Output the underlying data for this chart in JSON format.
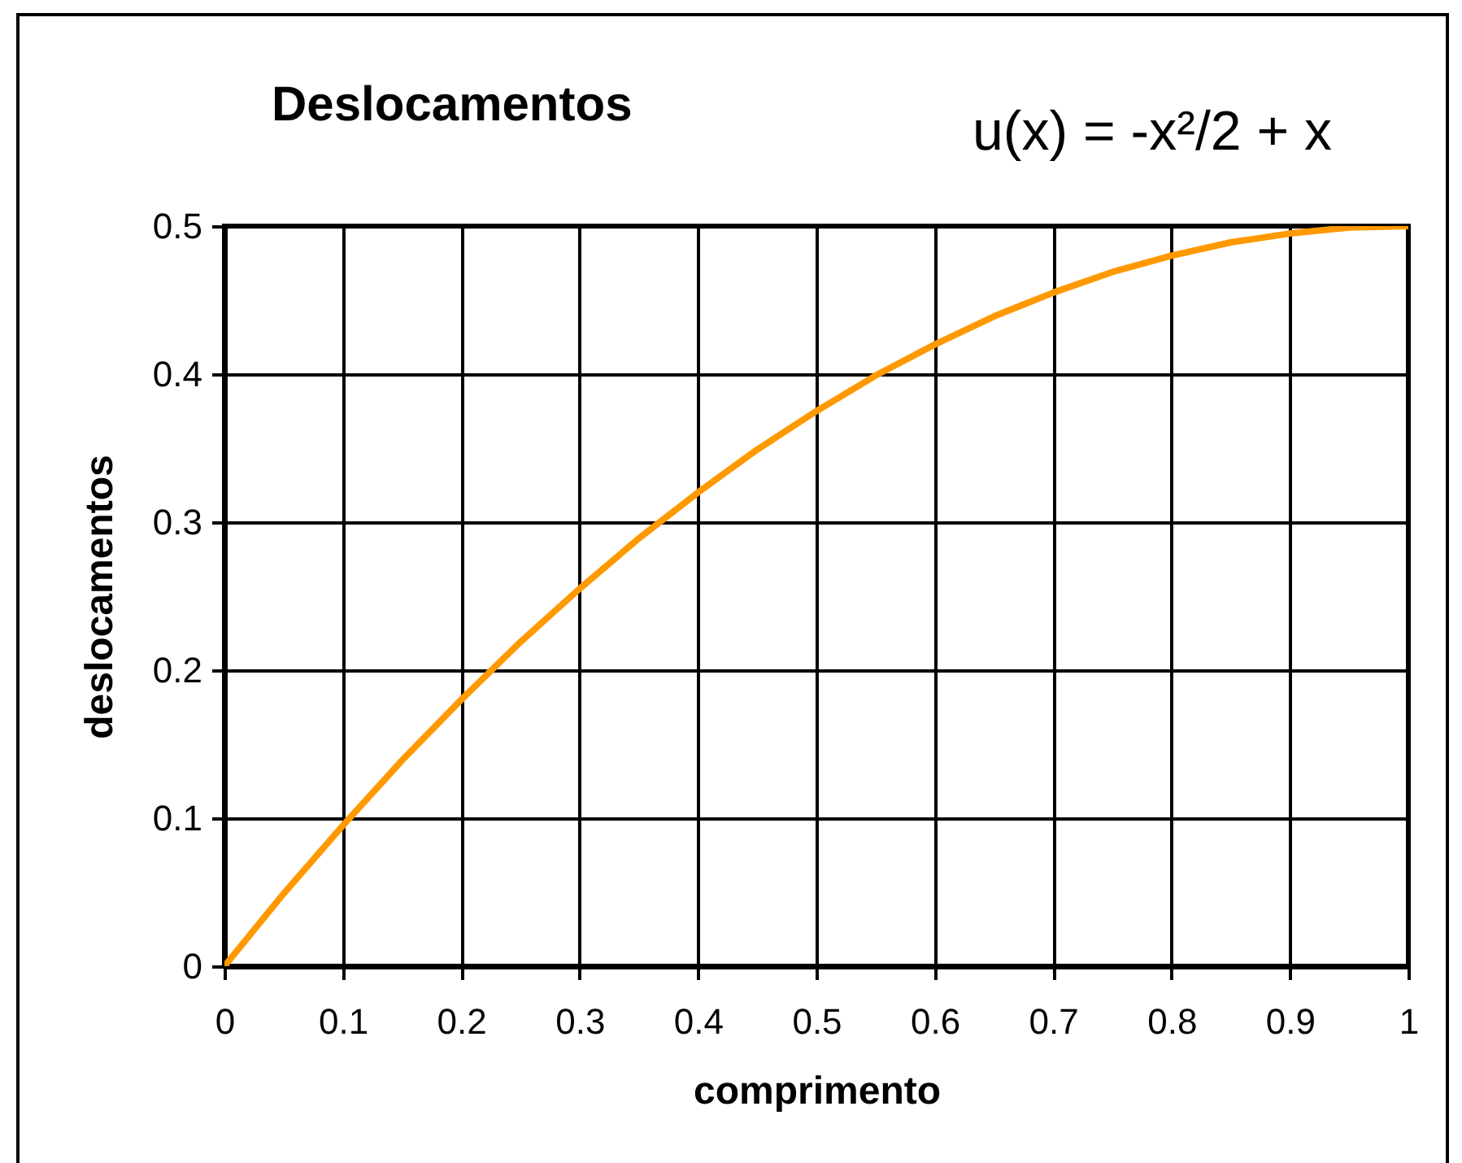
{
  "chart_data": {
    "type": "line",
    "title": "Deslocamentos",
    "xlabel": "comprimento",
    "ylabel": "deslocamentos",
    "annotations": [
      "u(x) = -x²/2 + x"
    ],
    "x": [
      0,
      0.05,
      0.1,
      0.15,
      0.2,
      0.25,
      0.3,
      0.35,
      0.4,
      0.45,
      0.5,
      0.55,
      0.6,
      0.65,
      0.7,
      0.75,
      0.8,
      0.85,
      0.9,
      0.95,
      1
    ],
    "series": [
      {
        "color": "#ff9900",
        "values": [
          0,
          0.049,
          0.095,
          0.139,
          0.18,
          0.219,
          0.255,
          0.289,
          0.32,
          0.349,
          0.375,
          0.399,
          0.42,
          0.439,
          0.455,
          0.469,
          0.48,
          0.489,
          0.495,
          0.499,
          0.5
        ]
      }
    ],
    "xlim": [
      0,
      1
    ],
    "xticks": [
      0,
      0.1,
      0.2,
      0.3,
      0.4,
      0.5,
      0.6,
      0.7,
      0.8,
      0.9,
      1
    ],
    "ylim": [
      0,
      0.5
    ],
    "yticks": [
      0,
      0.1,
      0.2,
      0.3,
      0.4,
      0.5
    ],
    "grid": true,
    "line_style": "solid"
  }
}
